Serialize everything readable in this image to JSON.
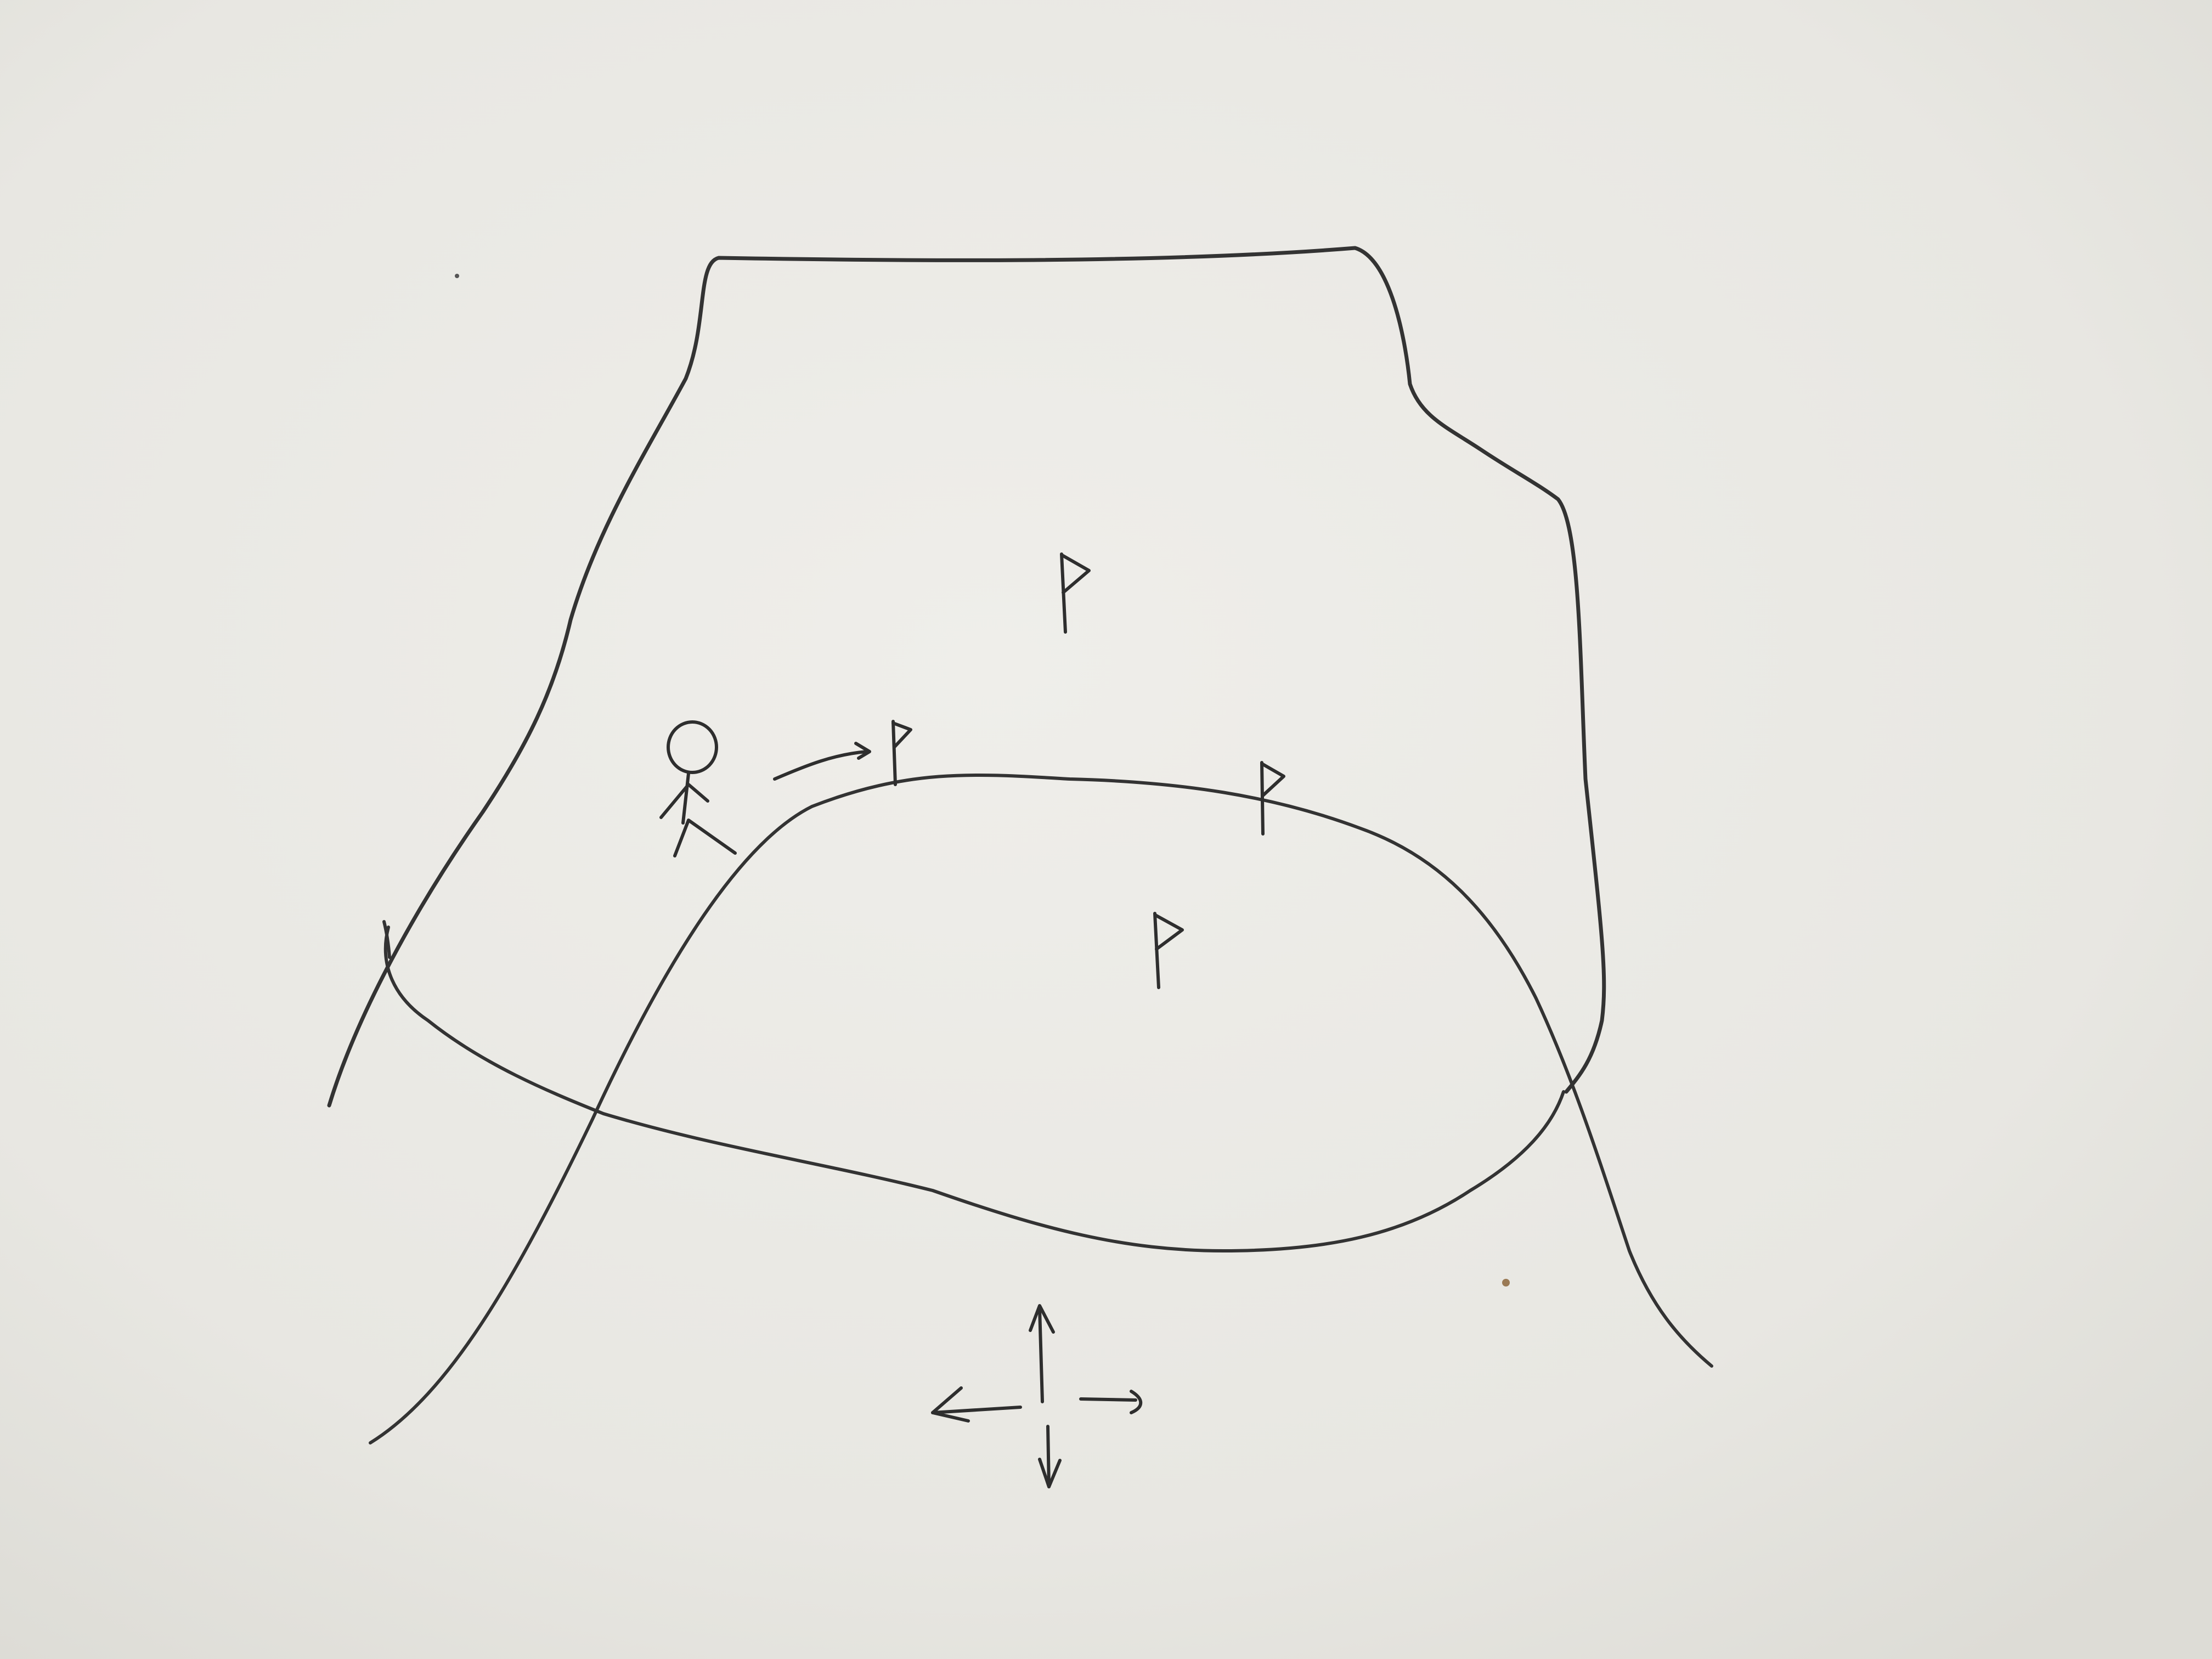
{
  "sketch": {
    "title": "",
    "elements": [
      "plateau-outline",
      "hill-contour",
      "oval-region",
      "stick-figure",
      "motion-arrow",
      "flag-1",
      "flag-2",
      "flag-3",
      "flag-4",
      "direction-cross"
    ],
    "flag_count": 4,
    "direction_cross": {
      "arrows": [
        "up",
        "down",
        "left"
      ],
      "right_arm": "stub"
    }
  },
  "colors": {
    "paper": "#ecebe6",
    "ink": "#2e2e2e"
  }
}
